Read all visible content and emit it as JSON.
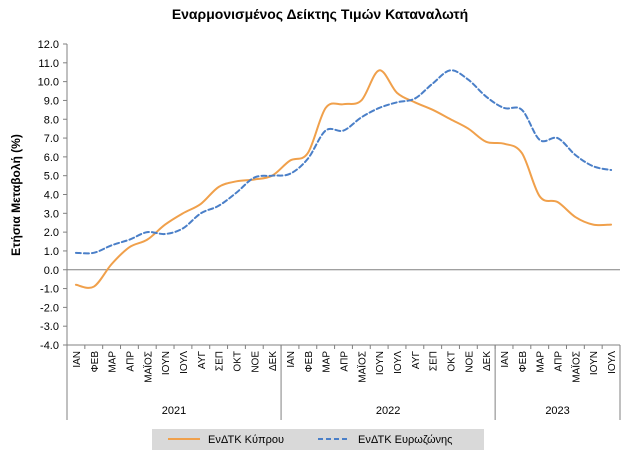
{
  "chart_data": {
    "type": "line",
    "title": "Εναρμονισμένος Δείκτης Τιμών Καταναλωτή",
    "ylabel": "Ετήσια Μεταβολή (%)",
    "xlabel": "",
    "ylim": [
      -4.0,
      12.0
    ],
    "y_step": 1.0,
    "y_tick_format": "one_decimal",
    "categories": [
      "ΙΑΝ",
      "ΦΕΒ",
      "ΜΑΡ",
      "ΑΠΡ",
      "ΜΑΪΟΣ",
      "ΙΟΥΝ",
      "ΙΟΥΛ",
      "ΑΥΓ",
      "ΣΕΠ",
      "ΟΚΤ",
      "ΝΟΕ",
      "ΔΕΚ",
      "ΙΑΝ",
      "ΦΕΒ",
      "ΜΑΡ",
      "ΑΠΡ",
      "ΜΑΪΟΣ",
      "ΙΟΥΝ",
      "ΙΟΥΛ",
      "ΑΥΓ",
      "ΣΕΠ",
      "ΟΚΤ",
      "ΝΟΕ",
      "ΔΕΚ",
      "ΙΑΝ",
      "ΦΕΒ",
      "ΜΑΡ",
      "ΑΠΡ",
      "ΜΑΪΟΣ",
      "ΙΟΥΝ",
      "ΙΟΥΛ"
    ],
    "groups": [
      {
        "label": "2021",
        "count": 12
      },
      {
        "label": "2022",
        "count": 12
      },
      {
        "label": "2023",
        "count": 7
      }
    ],
    "series": [
      {
        "name": "ΕνΔΤΚ Κύπρου",
        "color": "#F0A04B",
        "dash": "solid",
        "values": [
          -0.8,
          -0.9,
          0.3,
          1.2,
          1.6,
          2.4,
          3.0,
          3.5,
          4.4,
          4.7,
          4.8,
          5.0,
          5.8,
          6.2,
          8.6,
          8.8,
          9.0,
          10.6,
          9.4,
          8.9,
          8.5,
          8.0,
          7.5,
          6.8,
          6.7,
          6.2,
          3.9,
          3.6,
          2.8,
          2.4,
          2.4
        ]
      },
      {
        "name": "ΕνΔΤΚ Ευρωζώνης",
        "color": "#4A7FC8",
        "dash": "dashed",
        "values": [
          0.9,
          0.9,
          1.3,
          1.6,
          2.0,
          1.9,
          2.2,
          3.0,
          3.4,
          4.1,
          4.9,
          5.0,
          5.1,
          5.9,
          7.4,
          7.4,
          8.1,
          8.6,
          8.9,
          9.1,
          9.9,
          10.6,
          10.1,
          9.2,
          8.6,
          8.5,
          6.9,
          7.0,
          6.1,
          5.5,
          5.3
        ]
      }
    ],
    "legend_position": "bottom",
    "grid": false
  }
}
